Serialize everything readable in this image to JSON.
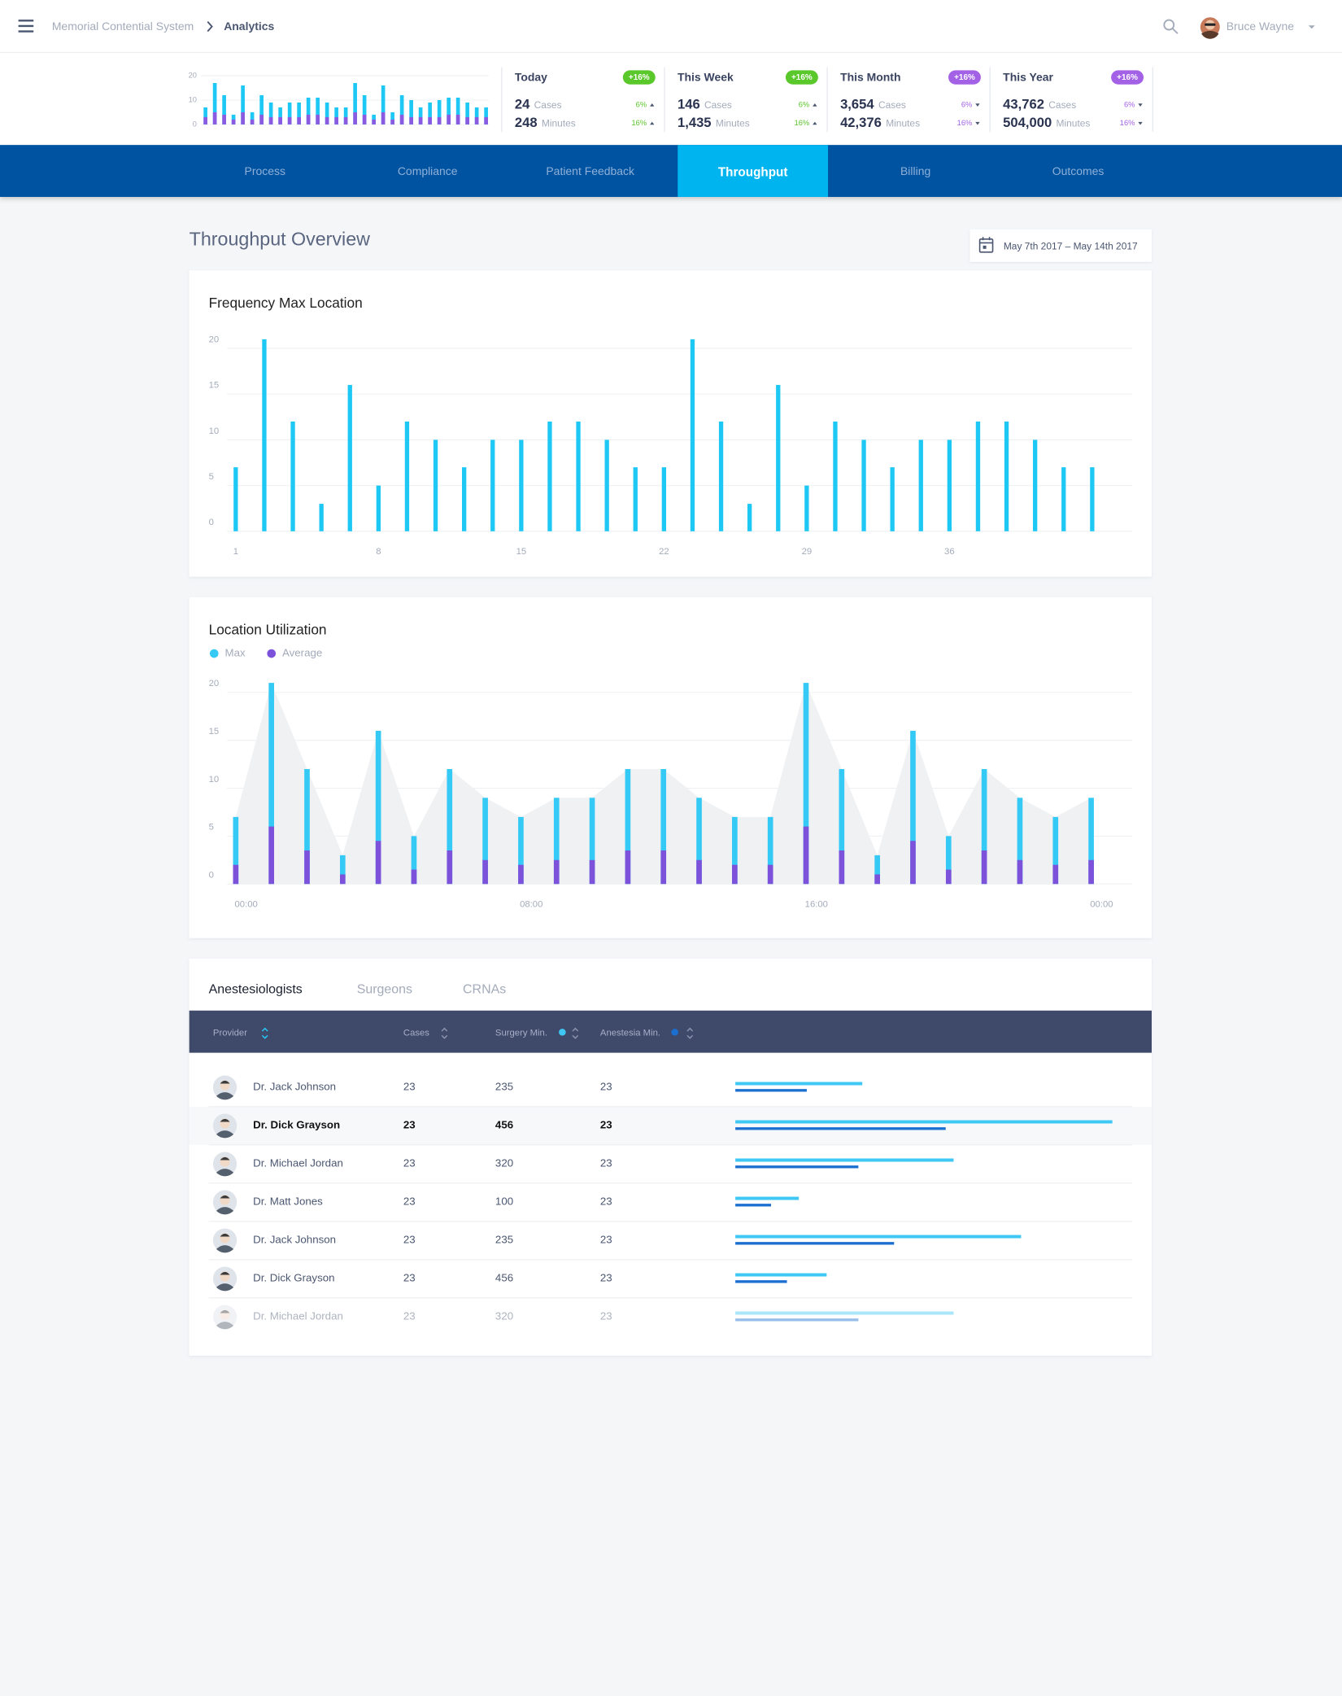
{
  "header": {
    "breadcrumb": [
      "Memorial Contential System",
      "Analytics"
    ],
    "user": "Bruce Wayne"
  },
  "stats": [
    {
      "period": "Today",
      "badge": "+16%",
      "badge_color": "#5ac72a",
      "cases": "24",
      "cases_label": "Cases",
      "minutes": "248",
      "minutes_label": "Minutes",
      "cases_change": "6%",
      "minutes_change": "16%",
      "trend": "up"
    },
    {
      "period": "This Week",
      "badge": "+16%",
      "badge_color": "#5ac72a",
      "cases": "146",
      "cases_label": "Cases",
      "minutes": "1,435",
      "minutes_label": "Minutes",
      "cases_change": "6%",
      "minutes_change": "16%",
      "trend": "up"
    },
    {
      "period": "This Month",
      "badge": "+16%",
      "badge_color": "#a361e6",
      "cases": "3,654",
      "cases_label": "Cases",
      "minutes": "42,376",
      "minutes_label": "Minutes",
      "cases_change": "6%",
      "minutes_change": "16%",
      "trend": "down"
    },
    {
      "period": "This Year",
      "badge": "+16%",
      "badge_color": "#a361e6",
      "cases": "43,762",
      "cases_label": "Cases",
      "minutes": "504,000",
      "minutes_label": "Minutes",
      "cases_change": "6%",
      "minutes_change": "16%",
      "trend": "down"
    }
  ],
  "tabs": {
    "items": [
      "Process",
      "Compliance",
      "Patient Feedback",
      "Throughput",
      "Billing",
      "Outcomes"
    ],
    "active": 3
  },
  "page": {
    "title": "Throughput Overview",
    "date_range": "May 7th 2017 – May 14th 2017"
  },
  "chart_data": [
    {
      "type": "bar",
      "ylim": [
        0,
        20
      ],
      "yticks": [
        0,
        10,
        20
      ],
      "grid": true,
      "series": [
        {
          "color": "#1ec8f5",
          "values": [
            7,
            17,
            12,
            4,
            16,
            5,
            12,
            9,
            7,
            9,
            9,
            11,
            11,
            9,
            7,
            7,
            17,
            12,
            4,
            16,
            5,
            12,
            10,
            7,
            9,
            10,
            11,
            11,
            9,
            7,
            7
          ]
        },
        {
          "color": "#8a5be0",
          "values": [
            3,
            5,
            4,
            2,
            5,
            2,
            4,
            3,
            3,
            3,
            3,
            4,
            4,
            3,
            3,
            3,
            5,
            4,
            2,
            5,
            2,
            4,
            3,
            3,
            3,
            3,
            4,
            4,
            3,
            3,
            3
          ]
        }
      ]
    },
    {
      "type": "bar",
      "title": "Frequency Max Location",
      "ylim": [
        0,
        20
      ],
      "yticks": [
        0,
        5,
        10,
        15,
        20
      ],
      "grid": true,
      "color": "#1ec8f5",
      "categories": [
        "1",
        null,
        null,
        null,
        null,
        "8",
        null,
        null,
        null,
        null,
        "15",
        null,
        null,
        null,
        null,
        "22",
        null,
        null,
        null,
        null,
        "29",
        null,
        null,
        null,
        null,
        "36",
        null,
        null,
        null,
        null,
        null
      ],
      "values": [
        7,
        21,
        12,
        3,
        16,
        5,
        12,
        10,
        7,
        10,
        10,
        12,
        12,
        10,
        7,
        7,
        21,
        12,
        3,
        16,
        5,
        12,
        10,
        7,
        10,
        10,
        12,
        12,
        10,
        7,
        7
      ]
    },
    {
      "type": "bar",
      "title": "Location Utilization",
      "ylim": [
        0,
        20
      ],
      "yticks": [
        0,
        5,
        10,
        15,
        20
      ],
      "grid": true,
      "legend": "top-left",
      "shade": "#f0f1f3",
      "categories": [
        "00:00",
        null,
        null,
        null,
        null,
        null,
        null,
        null,
        "08:00",
        null,
        null,
        null,
        null,
        null,
        null,
        null,
        "16:00",
        null,
        null,
        null,
        null,
        null,
        null,
        null,
        "00:00"
      ],
      "series": [
        {
          "name": "Max",
          "color": "#35c9f5",
          "values": [
            7,
            21,
            12,
            3,
            16,
            5,
            12,
            9,
            7,
            9,
            9,
            12,
            12,
            9,
            7,
            7,
            21,
            12,
            3,
            16,
            5,
            12,
            9,
            7,
            9
          ]
        },
        {
          "name": "Average",
          "color": "#7c52db",
          "values": [
            2,
            6,
            3.5,
            1,
            4.5,
            1.5,
            3.5,
            2.5,
            2,
            2.5,
            2.5,
            3.5,
            3.5,
            2.5,
            2,
            2,
            6,
            3.5,
            1,
            4.5,
            1.5,
            3.5,
            2.5,
            2,
            2.5
          ]
        }
      ]
    }
  ],
  "table": {
    "tabs": [
      "Anestesiologists",
      "Surgeons",
      "CRNAs"
    ],
    "active_tab": 0,
    "columns": [
      "Provider",
      "Cases",
      "Surgery Min.",
      "Anestesia Min."
    ],
    "selected_row": 1,
    "bar_xlim": [
      0,
      100
    ],
    "surgery_color": "#40c8f4",
    "anesthesia_color": "#1a6fd0",
    "rows": [
      {
        "name": "Dr. Jack Johnson",
        "cases": 23,
        "surgery": 235,
        "anesthesia": 23,
        "surgery_bar": 32,
        "anesthesia_bar": 18
      },
      {
        "name": "Dr. Dick Grayson",
        "cases": 23,
        "surgery": 456,
        "anesthesia": 23,
        "surgery_bar": 95,
        "anesthesia_bar": 53
      },
      {
        "name": "Dr. Michael Jordan",
        "cases": 23,
        "surgery": 320,
        "anesthesia": 23,
        "surgery_bar": 55,
        "anesthesia_bar": 31
      },
      {
        "name": "Dr. Matt Jones",
        "cases": 23,
        "surgery": 100,
        "anesthesia": 23,
        "surgery_bar": 16,
        "anesthesia_bar": 9
      },
      {
        "name": "Dr. Jack Johnson",
        "cases": 23,
        "surgery": 235,
        "anesthesia": 23,
        "surgery_bar": 72,
        "anesthesia_bar": 40
      },
      {
        "name": "Dr. Dick Grayson",
        "cases": 23,
        "surgery": 456,
        "anesthesia": 23,
        "surgery_bar": 23,
        "anesthesia_bar": 13
      },
      {
        "name": "Dr. Michael Jordan",
        "cases": 23,
        "surgery": 320,
        "anesthesia": 23,
        "surgery_bar": 55,
        "anesthesia_bar": 31
      }
    ]
  }
}
